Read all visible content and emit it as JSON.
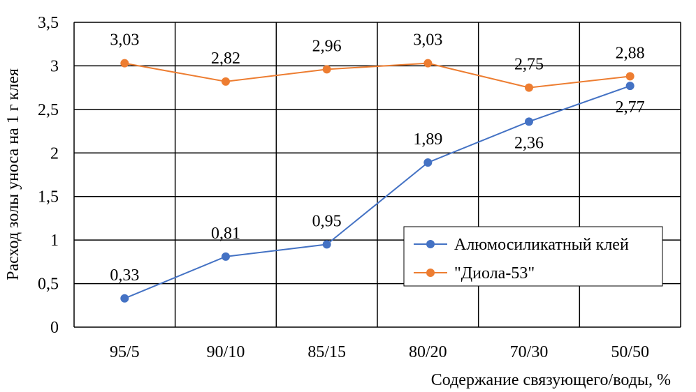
{
  "chart_data": {
    "type": "line",
    "title": "",
    "xlabel": "Содержание связующего/воды, %",
    "ylabel": "Расход золы уноса на 1 г клея",
    "categories": [
      "95/5",
      "90/10",
      "85/15",
      "80/20",
      "70/30",
      "50/50"
    ],
    "ylim": [
      0,
      3.5
    ],
    "yticks": [
      "0",
      "0,5",
      "1",
      "1,5",
      "2",
      "2,5",
      "3",
      "3,5"
    ],
    "grid": true,
    "legend_position": "right",
    "series": [
      {
        "name": "Алюмосиликатный клей",
        "color": "#4472c4",
        "values": [
          0.33,
          0.81,
          0.95,
          1.89,
          2.36,
          2.77
        ],
        "labels": [
          "0,33",
          "0,81",
          "0,95",
          "1,89",
          "2,36",
          "2,77"
        ]
      },
      {
        "name": "\"Диола-53\"",
        "color": "#ed7d31",
        "values": [
          3.03,
          2.82,
          2.96,
          3.03,
          2.75,
          2.88
        ],
        "labels": [
          "3,03",
          "2,82",
          "2,96",
          "3,03",
          "2,75",
          "2,88"
        ]
      }
    ]
  }
}
